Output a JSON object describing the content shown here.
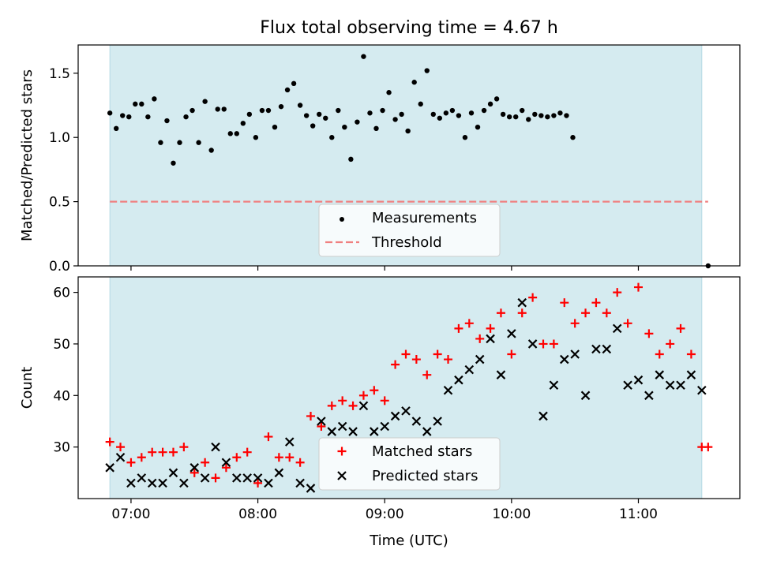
{
  "figure": {
    "title": "Flux total observing time = 4.67 h",
    "xlabel": "Time (UTC)"
  },
  "chart_data": [
    {
      "type": "scatter",
      "ylabel": "Matched/Predicted stars",
      "ylim": [
        0,
        1.72
      ],
      "xlim": [
        "06:35",
        "11:48"
      ],
      "x_ticks": [
        "07:00",
        "08:00",
        "09:00",
        "10:00",
        "11:00"
      ],
      "x_tick_labels_visible": false,
      "y_ticks": [
        0.0,
        0.5,
        1.0,
        1.5
      ],
      "y_tick_labels": [
        "0.0",
        "0.5",
        "1.0",
        "1.5"
      ],
      "observing_span": [
        "06:50",
        "11:30"
      ],
      "grid": false,
      "legend_position": "lower center",
      "series": [
        {
          "name": "Measurements",
          "marker": "dot",
          "color": "#000000",
          "x": [
            "06:50",
            "06:53",
            "06:56",
            "06:59",
            "07:02",
            "07:05",
            "07:08",
            "07:11",
            "07:14",
            "07:17",
            "07:20",
            "07:23",
            "07:26",
            "07:29",
            "07:32",
            "07:35",
            "07:38",
            "07:41",
            "07:44",
            "07:47",
            "07:50",
            "07:53",
            "07:56",
            "07:59",
            "08:02",
            "08:05",
            "08:08",
            "08:11",
            "08:14",
            "08:17",
            "08:20",
            "08:23",
            "08:26",
            "08:29",
            "08:32",
            "08:35",
            "08:38",
            "08:41",
            "08:44",
            "08:47",
            "08:50",
            "08:53",
            "08:56",
            "08:59",
            "09:02",
            "09:05",
            "09:08",
            "09:11",
            "09:14",
            "09:17",
            "09:20",
            "09:23",
            "09:26",
            "09:29",
            "09:32",
            "09:35",
            "09:38",
            "09:41",
            "09:44",
            "09:47",
            "09:50",
            "09:53",
            "09:56",
            "09:59",
            "10:02",
            "10:05",
            "10:08",
            "10:11",
            "10:14",
            "10:17",
            "10:20",
            "10:23",
            "10:26",
            "10:29",
            "11:33"
          ],
          "y": [
            1.19,
            1.07,
            1.17,
            1.16,
            1.26,
            1.26,
            1.16,
            1.3,
            0.96,
            1.13,
            0.8,
            0.96,
            1.16,
            1.21,
            0.96,
            1.28,
            0.9,
            1.22,
            1.22,
            1.03,
            1.03,
            1.11,
            1.18,
            1.0,
            1.21,
            1.21,
            1.08,
            1.24,
            1.37,
            1.42,
            1.25,
            1.17,
            1.09,
            1.18,
            1.15,
            1.0,
            1.21,
            1.08,
            0.83,
            1.12,
            1.63,
            1.19,
            1.07,
            1.21,
            1.35,
            1.14,
            1.18,
            1.05,
            1.43,
            1.26,
            1.52,
            1.18,
            1.15,
            1.19,
            1.21,
            1.17,
            1.0,
            1.19,
            1.08,
            1.21,
            1.26,
            1.3,
            1.18,
            1.16,
            1.16,
            1.21,
            1.14,
            1.18,
            1.17,
            1.16,
            1.17,
            1.19,
            1.17,
            1.0,
            0.0
          ]
        },
        {
          "name": "Threshold",
          "type": "line",
          "style": "dashed",
          "color": "#f08080",
          "x": [
            "06:50",
            "11:33"
          ],
          "y": [
            0.5,
            0.5
          ]
        }
      ]
    },
    {
      "type": "scatter",
      "ylabel": "Count",
      "ylim": [
        20,
        63
      ],
      "xlim": [
        "06:35",
        "11:48"
      ],
      "x_ticks": [
        "07:00",
        "08:00",
        "09:00",
        "10:00",
        "11:00"
      ],
      "x_tick_labels": [
        "07:00",
        "08:00",
        "09:00",
        "10:00",
        "11:00"
      ],
      "y_ticks": [
        30,
        40,
        50,
        60
      ],
      "y_tick_labels": [
        "30",
        "40",
        "50",
        "60"
      ],
      "observing_span": [
        "06:50",
        "11:30"
      ],
      "grid": false,
      "legend_position": "lower center",
      "series": [
        {
          "name": "Matched stars",
          "marker": "plus",
          "color": "#ff0000",
          "x": [
            "06:50",
            "06:55",
            "07:00",
            "07:05",
            "07:10",
            "07:15",
            "07:20",
            "07:25",
            "07:30",
            "07:35",
            "07:40",
            "07:45",
            "07:50",
            "07:55",
            "08:00",
            "08:05",
            "08:10",
            "08:15",
            "08:20",
            "08:25",
            "08:30",
            "08:35",
            "08:40",
            "08:45",
            "08:50",
            "08:55",
            "09:00",
            "09:05",
            "09:10",
            "09:15",
            "09:20",
            "09:25",
            "09:30",
            "09:35",
            "09:40",
            "09:45",
            "09:50",
            "09:55",
            "10:00",
            "10:05",
            "10:10",
            "10:15",
            "10:20",
            "10:25",
            "10:30",
            "10:35",
            "10:40",
            "10:45",
            "10:50",
            "10:55",
            "11:00",
            "11:05",
            "11:10",
            "11:15",
            "11:20",
            "11:25",
            "11:30",
            "11:33"
          ],
          "y": [
            31,
            30,
            27,
            28,
            29,
            29,
            29,
            30,
            25,
            27,
            24,
            26,
            28,
            29,
            23,
            32,
            28,
            28,
            27,
            36,
            34,
            38,
            39,
            38,
            40,
            41,
            39,
            46,
            48,
            47,
            44,
            48,
            47,
            53,
            54,
            51,
            53,
            56,
            48,
            56,
            59,
            50,
            50,
            58,
            54,
            56,
            58,
            56,
            60,
            54,
            61,
            52,
            48,
            50,
            53,
            48,
            30,
            30
          ]
        },
        {
          "name": "Predicted stars",
          "marker": "x",
          "color": "#000000",
          "x": [
            "06:50",
            "06:55",
            "07:00",
            "07:05",
            "07:10",
            "07:15",
            "07:20",
            "07:25",
            "07:30",
            "07:35",
            "07:40",
            "07:45",
            "07:50",
            "07:55",
            "08:00",
            "08:05",
            "08:10",
            "08:15",
            "08:20",
            "08:25",
            "08:30",
            "08:35",
            "08:40",
            "08:45",
            "08:50",
            "08:55",
            "09:00",
            "09:05",
            "09:10",
            "09:15",
            "09:20",
            "09:25",
            "09:30",
            "09:35",
            "09:40",
            "09:45",
            "09:50",
            "09:55",
            "10:00",
            "10:05",
            "10:10",
            "10:15",
            "10:20",
            "10:25",
            "10:30",
            "10:35",
            "10:40",
            "10:45",
            "10:50",
            "10:55",
            "11:00",
            "11:05",
            "11:10",
            "11:15",
            "11:20",
            "11:25",
            "11:30"
          ],
          "y": [
            26,
            28,
            23,
            24,
            23,
            23,
            25,
            23,
            26,
            24,
            30,
            27,
            24,
            24,
            24,
            23,
            25,
            31,
            23,
            22,
            35,
            33,
            34,
            33,
            38,
            33,
            34,
            36,
            37,
            35,
            33,
            35,
            41,
            43,
            45,
            47,
            51,
            44,
            52,
            58,
            50,
            36,
            42,
            47,
            48,
            40,
            49,
            49,
            53,
            42,
            43,
            40,
            44,
            42,
            42,
            44,
            41
          ]
        }
      ]
    }
  ],
  "colors": {
    "span": "#d5ebf0",
    "span_edge": "#b5d9e3",
    "threshold": "#f08080",
    "matched": "#ff0000",
    "predicted": "#000000",
    "measurement": "#000000"
  }
}
